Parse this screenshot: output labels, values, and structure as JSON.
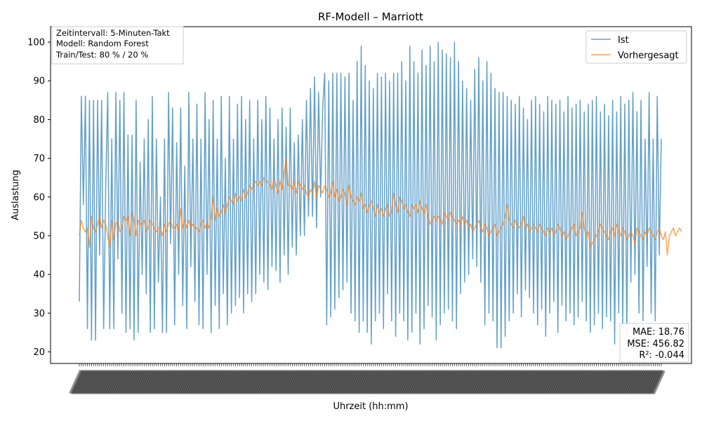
{
  "chart_data": {
    "type": "line",
    "title": "RF-Modell – Marriott",
    "xlabel": "Uhrzeit (hh:mm)",
    "ylabel": "Auslastung",
    "ylim": [
      17,
      104
    ],
    "yticks": [
      20,
      30,
      40,
      50,
      60,
      70,
      80,
      90,
      100
    ],
    "x_tick_labels_legible": false,
    "grid": false,
    "legend_position": "top-right",
    "info_box": [
      "Zeitintervall: 5-Minuten-Takt",
      "Modell: Random Forest",
      "Train/Test: 80 % / 20 %"
    ],
    "metrics_box": [
      "MAE: 18.76",
      "MSE: 456.82",
      "R²: -0.044"
    ],
    "num_points": 288,
    "series": [
      {
        "name": "Ist",
        "color": "#1f77b4",
        "values": [
          33,
          86,
          58,
          86,
          26,
          85,
          23,
          85,
          23,
          85,
          45,
          85,
          26,
          62,
          87,
          26,
          75,
          26,
          87,
          44,
          85,
          30,
          87,
          25,
          76,
          26,
          76,
          23,
          85,
          25,
          69,
          40,
          75,
          35,
          80,
          25,
          86,
          26,
          75,
          38,
          60,
          25,
          75,
          25,
          87,
          48,
          83,
          27,
          74,
          40,
          83,
          32,
          68,
          26,
          87,
          42,
          75,
          33,
          84,
          27,
          75,
          26,
          87,
          40,
          80,
          25,
          85,
          32,
          75,
          26,
          86,
          35,
          70,
          27,
          86,
          30,
          75,
          32,
          84,
          34,
          86,
          30,
          80,
          35,
          85,
          33,
          75,
          35,
          85,
          40,
          80,
          38,
          86,
          36,
          83,
          42,
          75,
          41,
          80,
          38,
          83,
          45,
          78,
          40,
          83,
          47,
          74,
          45,
          76,
          50,
          80,
          50,
          85,
          55,
          88,
          55,
          91,
          52,
          87,
          60,
          83,
          92,
          27,
          90,
          29,
          92,
          31,
          92,
          34,
          92,
          36,
          91,
          38,
          92,
          30,
          85,
          28,
          95,
          25,
          99,
          28,
          94,
          25,
          90,
          22,
          88,
          28,
          92,
          30,
          91,
          26,
          92,
          35,
          90,
          28,
          92,
          24,
          92,
          30,
          95,
          28,
          90,
          23,
          99,
          25,
          95,
          30,
          92,
          22,
          98,
          26,
          94,
          32,
          99,
          29,
          95,
          23,
          100,
          27,
          98,
          30,
          97,
          31,
          96,
          28,
          100,
          26,
          95,
          35,
          90,
          38,
          88,
          40,
          85,
          44,
          93,
          42,
          96,
          38,
          90,
          27,
          95,
          30,
          92,
          28,
          88,
          21,
          87,
          21,
          87,
          24,
          86,
          28,
          85,
          30,
          84,
          35,
          86,
          29,
          83,
          36,
          80,
          34,
          85,
          30,
          86,
          27,
          84,
          31,
          82,
          24,
          86,
          30,
          85,
          33,
          84,
          25,
          85,
          32,
          82,
          28,
          86,
          30,
          83,
          27,
          84,
          29,
          85,
          33,
          82,
          28,
          84,
          25,
          85,
          27,
          86,
          30,
          82,
          26,
          84,
          29,
          81,
          28,
          85,
          22,
          82,
          30,
          86,
          27,
          84,
          25,
          85,
          38,
          87,
          40,
          82,
          30,
          85,
          28,
          75,
          42,
          87,
          30,
          75,
          28,
          86,
          45,
          75
        ]
      },
      {
        "name": "Vorhergesagt",
        "color": "#ff7f0e",
        "values": [
          50,
          54,
          52,
          51,
          52,
          47,
          55,
          52,
          51,
          53,
          55,
          52,
          54,
          53,
          50,
          47,
          54,
          49,
          53,
          54,
          51,
          52,
          55,
          54,
          55,
          50,
          56,
          54,
          50,
          54,
          53,
          53,
          54,
          51,
          52,
          54,
          53,
          52,
          51,
          52,
          52,
          50,
          53,
          51,
          53,
          54,
          52,
          52,
          53,
          51,
          57,
          52,
          54,
          52,
          54,
          52,
          53,
          52,
          52,
          51,
          53,
          54,
          52,
          53,
          52,
          55,
          60,
          54,
          57,
          55,
          56,
          58,
          56,
          58,
          60,
          59,
          58,
          61,
          59,
          60,
          59,
          62,
          60,
          61,
          63,
          62,
          63,
          64,
          63,
          64,
          63,
          65,
          64,
          64,
          63,
          62,
          65,
          63,
          61,
          64,
          62,
          66,
          70,
          63,
          63,
          62,
          64,
          61,
          64,
          63,
          62,
          63,
          61,
          60,
          62,
          61,
          64,
          60,
          63,
          62,
          61,
          63,
          62,
          60,
          61,
          64,
          60,
          62,
          59,
          60,
          62,
          61,
          58,
          63,
          60,
          59,
          58,
          60,
          59,
          61,
          57,
          58,
          56,
          58,
          59,
          57,
          55,
          58,
          56,
          57,
          55,
          57,
          58,
          55,
          56,
          61,
          58,
          56,
          60,
          59,
          57,
          58,
          56,
          55,
          58,
          57,
          58,
          56,
          59,
          57,
          56,
          58,
          55,
          53,
          54,
          55,
          54,
          55,
          54,
          53,
          56,
          55,
          54,
          56,
          55,
          54,
          53,
          54,
          53,
          55,
          53,
          54,
          52,
          53,
          51,
          52,
          53,
          54,
          52,
          51,
          53,
          52,
          50,
          51,
          52,
          53,
          50,
          51,
          52,
          53,
          55,
          58,
          54,
          53,
          52,
          54,
          53,
          52,
          53,
          55,
          52,
          53,
          51,
          52,
          53,
          52,
          51,
          53,
          52,
          51,
          50,
          52,
          51,
          52,
          50,
          51,
          53,
          52,
          50,
          51,
          49,
          50,
          51,
          52,
          53,
          50,
          51,
          52,
          56,
          52,
          50,
          51,
          47,
          48,
          49,
          50,
          51,
          53,
          52,
          51,
          50,
          49,
          51,
          52,
          50,
          53,
          51,
          50,
          52,
          51,
          49,
          50,
          51,
          50,
          48,
          52,
          51,
          50,
          49,
          51,
          50,
          52,
          51,
          50,
          49,
          51,
          52,
          50,
          49,
          51,
          45,
          50,
          51,
          52,
          50,
          51,
          52,
          51
        ]
      }
    ]
  }
}
